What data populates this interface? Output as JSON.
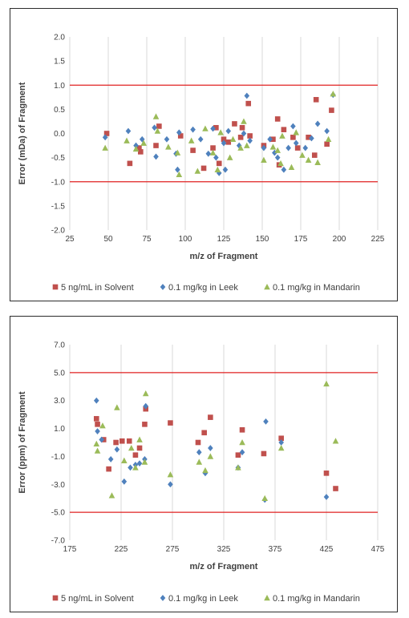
{
  "colors": {
    "solvent": "#C0504D",
    "leek": "#4F81BD",
    "mandarin": "#9BBB59",
    "limit": "#E02020",
    "grid": "#D9D9D9"
  },
  "legend": {
    "solvent": "5 ng/mL in Solvent",
    "leek": "0.1 mg/kg in Leek",
    "mandarin": "0.1 mg/kg in Mandarin"
  },
  "chart_data": [
    {
      "type": "scatter",
      "xlabel": "m/z of Fragment",
      "ylabel": "Error (mDa) of Fragment",
      "xlim": [
        25,
        225
      ],
      "ylim": [
        -2.0,
        2.0
      ],
      "xticks": [
        "25",
        "50",
        "75",
        "100",
        "125",
        "150",
        "175",
        "200",
        "225"
      ],
      "yticks": [
        "2.0",
        "1.5",
        "1.0",
        "0.5",
        "0.0",
        "-0.5",
        "-1.0",
        "-1.5",
        "-2.0"
      ],
      "grid": "vertical",
      "limit_lines": [
        1.0,
        -1.0
      ],
      "legend_position": "bottom",
      "series": [
        {
          "name": "5 ng/mL in Solvent",
          "marker": "square",
          "points": [
            [
              49,
              0.0
            ],
            [
              64,
              -0.62
            ],
            [
              70,
              -0.3
            ],
            [
              71,
              -0.38
            ],
            [
              81,
              -0.25
            ],
            [
              83,
              0.15
            ],
            [
              97,
              -0.05
            ],
            [
              105,
              -0.35
            ],
            [
              112,
              -0.72
            ],
            [
              118,
              -0.3
            ],
            [
              120,
              0.12
            ],
            [
              122,
              -0.62
            ],
            [
              125,
              -0.12
            ],
            [
              128,
              -0.18
            ],
            [
              132,
              0.2
            ],
            [
              136,
              -0.08
            ],
            [
              137,
              0.12
            ],
            [
              141,
              0.62
            ],
            [
              142,
              -0.05
            ],
            [
              151,
              -0.25
            ],
            [
              157,
              -0.12
            ],
            [
              160,
              0.3
            ],
            [
              161,
              -0.65
            ],
            [
              164,
              0.08
            ],
            [
              170,
              -0.08
            ],
            [
              173,
              -0.3
            ],
            [
              180,
              -0.08
            ],
            [
              184,
              -0.45
            ],
            [
              185,
              0.7
            ],
            [
              192,
              -0.22
            ],
            [
              195,
              0.48
            ]
          ]
        },
        {
          "name": "0.1 mg/kg in Leek",
          "marker": "diamond",
          "points": [
            [
              48,
              -0.08
            ],
            [
              63,
              0.05
            ],
            [
              68,
              -0.25
            ],
            [
              72,
              -0.12
            ],
            [
              80,
              0.12
            ],
            [
              81,
              -0.48
            ],
            [
              88,
              -0.12
            ],
            [
              94,
              -0.42
            ],
            [
              95,
              -0.75
            ],
            [
              96,
              0.02
            ],
            [
              105,
              0.08
            ],
            [
              110,
              -0.12
            ],
            [
              115,
              -0.42
            ],
            [
              118,
              0.1
            ],
            [
              120,
              -0.5
            ],
            [
              122,
              -0.82
            ],
            [
              125,
              -0.2
            ],
            [
              126,
              -0.75
            ],
            [
              128,
              0.05
            ],
            [
              135,
              -0.25
            ],
            [
              138,
              0.0
            ],
            [
              140,
              0.78
            ],
            [
              142,
              -0.15
            ],
            [
              151,
              -0.3
            ],
            [
              155,
              -0.12
            ],
            [
              158,
              -0.4
            ],
            [
              160,
              -0.5
            ],
            [
              164,
              -0.75
            ],
            [
              167,
              -0.3
            ],
            [
              170,
              0.15
            ],
            [
              172,
              -0.2
            ],
            [
              178,
              -0.3
            ],
            [
              182,
              -0.1
            ],
            [
              186,
              0.2
            ],
            [
              192,
              0.05
            ],
            [
              196,
              0.8
            ]
          ]
        },
        {
          "name": "0.1 mg/kg in Mandarin",
          "marker": "triangle",
          "points": [
            [
              48,
              -0.3
            ],
            [
              62,
              -0.15
            ],
            [
              68,
              -0.32
            ],
            [
              73,
              -0.2
            ],
            [
              81,
              0.35
            ],
            [
              82,
              0.05
            ],
            [
              89,
              -0.28
            ],
            [
              95,
              -0.4
            ],
            [
              96,
              -0.85
            ],
            [
              104,
              -0.15
            ],
            [
              108,
              -0.78
            ],
            [
              113,
              0.1
            ],
            [
              118,
              -0.4
            ],
            [
              121,
              -0.75
            ],
            [
              123,
              0.02
            ],
            [
              129,
              -0.5
            ],
            [
              131,
              -0.12
            ],
            [
              136,
              -0.3
            ],
            [
              138,
              0.25
            ],
            [
              140,
              -0.25
            ],
            [
              151,
              -0.55
            ],
            [
              157,
              -0.28
            ],
            [
              160,
              -0.35
            ],
            [
              162,
              -0.62
            ],
            [
              163,
              -0.05
            ],
            [
              169,
              -0.7
            ],
            [
              172,
              0.02
            ],
            [
              176,
              -0.45
            ],
            [
              180,
              -0.55
            ],
            [
              186,
              -0.6
            ],
            [
              193,
              -0.12
            ],
            [
              196,
              0.82
            ]
          ]
        }
      ]
    },
    {
      "type": "scatter",
      "xlabel": "m/z of Fragment",
      "ylabel": "Error (ppm) of Fragment",
      "xlim": [
        175,
        475
      ],
      "ylim": [
        -7.0,
        7.0
      ],
      "xticks": [
        "175",
        "225",
        "275",
        "325",
        "375",
        "425",
        "475"
      ],
      "yticks": [
        "7.0",
        "5.0",
        "3.0",
        "1.0",
        "-1.0",
        "-3.0",
        "-5.0",
        "-7.0"
      ],
      "grid": "vertical",
      "limit_lines": [
        5.0,
        -5.0
      ],
      "legend_position": "bottom",
      "series": [
        {
          "name": "5 ng/mL in Solvent",
          "marker": "square",
          "points": [
            [
              201,
              1.7
            ],
            [
              202,
              1.3
            ],
            [
              208,
              0.2
            ],
            [
              213,
              -1.9
            ],
            [
              220,
              0.0
            ],
            [
              226,
              0.1
            ],
            [
              233,
              0.1
            ],
            [
              239,
              -0.9
            ],
            [
              243,
              -0.4
            ],
            [
              248,
              1.3
            ],
            [
              249,
              2.4
            ],
            [
              273,
              1.4
            ],
            [
              300,
              0.0
            ],
            [
              306,
              0.7
            ],
            [
              312,
              1.8
            ],
            [
              339,
              -0.9
            ],
            [
              343,
              0.9
            ],
            [
              364,
              -0.8
            ],
            [
              381,
              0.3
            ],
            [
              425,
              -2.2
            ],
            [
              434,
              -3.3
            ]
          ]
        },
        {
          "name": "0.1 mg/kg in Leek",
          "marker": "diamond",
          "points": [
            [
              201,
              3.0
            ],
            [
              202,
              0.8
            ],
            [
              206,
              0.2
            ],
            [
              215,
              -1.2
            ],
            [
              221,
              -0.5
            ],
            [
              228,
              -2.8
            ],
            [
              234,
              -1.8
            ],
            [
              239,
              -1.6
            ],
            [
              243,
              -1.5
            ],
            [
              248,
              -1.2
            ],
            [
              249,
              2.6
            ],
            [
              273,
              -3.0
            ],
            [
              301,
              -0.7
            ],
            [
              307,
              -2.2
            ],
            [
              312,
              -0.4
            ],
            [
              339,
              -1.8
            ],
            [
              343,
              -0.7
            ],
            [
              366,
              1.5
            ],
            [
              365,
              -4.1
            ],
            [
              381,
              0.0
            ],
            [
              425,
              -3.9
            ]
          ]
        },
        {
          "name": "0.1 mg/kg in Mandarin",
          "marker": "triangle",
          "points": [
            [
              201,
              -0.1
            ],
            [
              202,
              -0.6
            ],
            [
              207,
              1.2
            ],
            [
              216,
              -3.8
            ],
            [
              221,
              2.5
            ],
            [
              228,
              -1.3
            ],
            [
              235,
              -0.4
            ],
            [
              239,
              -1.8
            ],
            [
              243,
              0.2
            ],
            [
              248,
              -1.4
            ],
            [
              249,
              3.5
            ],
            [
              273,
              -2.3
            ],
            [
              301,
              -1.4
            ],
            [
              307,
              -2.0
            ],
            [
              312,
              -1.0
            ],
            [
              339,
              -1.8
            ],
            [
              343,
              0.0
            ],
            [
              365,
              -4.0
            ],
            [
              381,
              -0.4
            ],
            [
              425,
              4.2
            ],
            [
              434,
              0.1
            ]
          ]
        }
      ]
    }
  ]
}
